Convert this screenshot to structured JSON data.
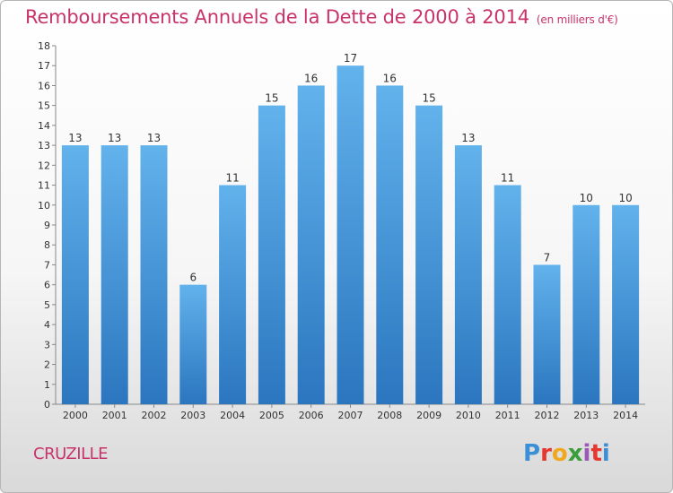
{
  "chart_data": {
    "type": "bar",
    "title": "Remboursements Annuels de la Dette de 2000 à 2014",
    "subtitle": "(en milliers d'€)",
    "categories": [
      "2000",
      "2001",
      "2002",
      "2003",
      "2004",
      "2005",
      "2006",
      "2007",
      "2008",
      "2009",
      "2010",
      "2011",
      "2012",
      "2013",
      "2014"
    ],
    "values": [
      13,
      13,
      13,
      6,
      11,
      15,
      16,
      17,
      16,
      15,
      13,
      11,
      7,
      10,
      10
    ],
    "ylim": [
      0,
      18
    ],
    "yticks": [
      0,
      1,
      2,
      3,
      4,
      5,
      6,
      7,
      8,
      9,
      10,
      11,
      12,
      13,
      14,
      15,
      16,
      17,
      18
    ],
    "grid": false,
    "colors": {
      "bar": "#3e8fd6",
      "bar_light": "#62b2ec",
      "bar_dark": "#2b76bf"
    }
  },
  "location": "CRUZILLE",
  "logo": {
    "text": "Proxiti"
  }
}
